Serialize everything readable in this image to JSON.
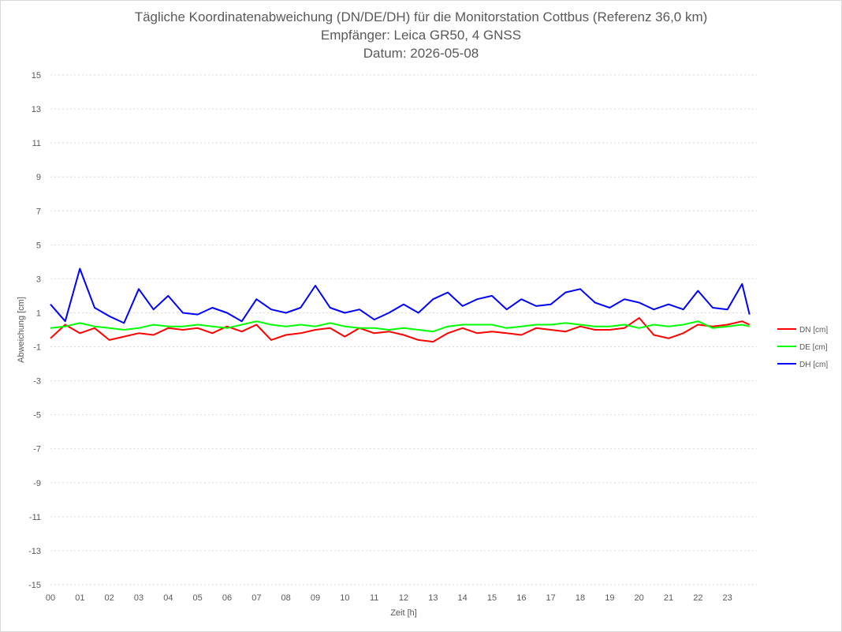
{
  "chart_data": {
    "type": "line",
    "title_lines": [
      "Tägliche Koordinatenabweichung (DN/DE/DH) für die Monitorstation Cottbus (Referenz 36,0 km)",
      "Empfänger: Leica GR50, 4 GNSS",
      "Datum: 2026-05-08"
    ],
    "xlabel": "Zeit [h]",
    "ylabel": "Abweichung [cm]",
    "xlim": [
      0,
      24
    ],
    "ylim": [
      -15,
      15
    ],
    "x_tick_labels": [
      "00",
      "01",
      "02",
      "03",
      "04",
      "05",
      "06",
      "07",
      "08",
      "09",
      "10",
      "11",
      "12",
      "13",
      "14",
      "15",
      "16",
      "17",
      "18",
      "19",
      "20",
      "21",
      "22",
      "23"
    ],
    "y_ticks": [
      15,
      13,
      11,
      9,
      7,
      5,
      3,
      1,
      -1,
      -3,
      -5,
      -7,
      -9,
      -11,
      -13,
      -15
    ],
    "grid": "horizontal dotted",
    "legend_position": "right",
    "x": [
      0,
      0.5,
      1,
      1.5,
      2,
      2.5,
      3,
      3.5,
      4,
      4.5,
      5,
      5.5,
      6,
      6.5,
      7,
      7.5,
      8,
      8.5,
      9,
      9.5,
      10,
      10.5,
      11,
      11.5,
      12,
      12.5,
      13,
      13.5,
      14,
      14.5,
      15,
      15.5,
      16,
      16.5,
      17,
      17.5,
      18,
      18.5,
      19,
      19.5,
      20,
      20.5,
      21,
      21.5,
      22,
      22.5,
      23,
      23.5,
      23.75
    ],
    "series": [
      {
        "name": "DN [cm]",
        "color": "#ff0000",
        "values": [
          -0.5,
          0.3,
          -0.2,
          0.1,
          -0.6,
          -0.4,
          -0.2,
          -0.3,
          0.1,
          0.0,
          0.1,
          -0.2,
          0.2,
          -0.1,
          0.3,
          -0.6,
          -0.3,
          -0.2,
          0.0,
          0.1,
          -0.4,
          0.1,
          -0.2,
          -0.1,
          -0.3,
          -0.6,
          -0.7,
          -0.2,
          0.1,
          -0.2,
          -0.1,
          -0.2,
          -0.3,
          0.1,
          0.0,
          -0.1,
          0.2,
          0.0,
          0.0,
          0.1,
          0.7,
          -0.3,
          -0.5,
          -0.2,
          0.3,
          0.2,
          0.3,
          0.5,
          0.3
        ]
      },
      {
        "name": "DE [cm]",
        "color": "#00ff00",
        "values": [
          0.1,
          0.2,
          0.4,
          0.2,
          0.1,
          0.0,
          0.1,
          0.3,
          0.2,
          0.2,
          0.3,
          0.2,
          0.1,
          0.3,
          0.5,
          0.3,
          0.2,
          0.3,
          0.2,
          0.4,
          0.2,
          0.1,
          0.1,
          0.0,
          0.1,
          0.0,
          -0.1,
          0.2,
          0.3,
          0.3,
          0.3,
          0.1,
          0.2,
          0.3,
          0.3,
          0.4,
          0.3,
          0.2,
          0.2,
          0.3,
          0.1,
          0.3,
          0.2,
          0.3,
          0.5,
          0.1,
          0.2,
          0.3,
          0.2
        ]
      },
      {
        "name": "DH [cm]",
        "color": "#0000ff",
        "values": [
          1.5,
          0.5,
          3.6,
          1.3,
          0.8,
          0.4,
          2.4,
          1.2,
          2.0,
          1.0,
          0.9,
          1.3,
          1.0,
          0.5,
          1.8,
          1.2,
          1.0,
          1.3,
          2.6,
          1.3,
          1.0,
          1.2,
          0.6,
          1.0,
          1.5,
          1.0,
          1.8,
          2.2,
          1.4,
          1.8,
          2.0,
          1.2,
          1.8,
          1.4,
          1.5,
          2.2,
          2.4,
          1.6,
          1.3,
          1.8,
          1.6,
          1.2,
          1.5,
          1.2,
          2.3,
          1.3,
          1.2,
          2.7,
          0.9
        ]
      }
    ]
  }
}
